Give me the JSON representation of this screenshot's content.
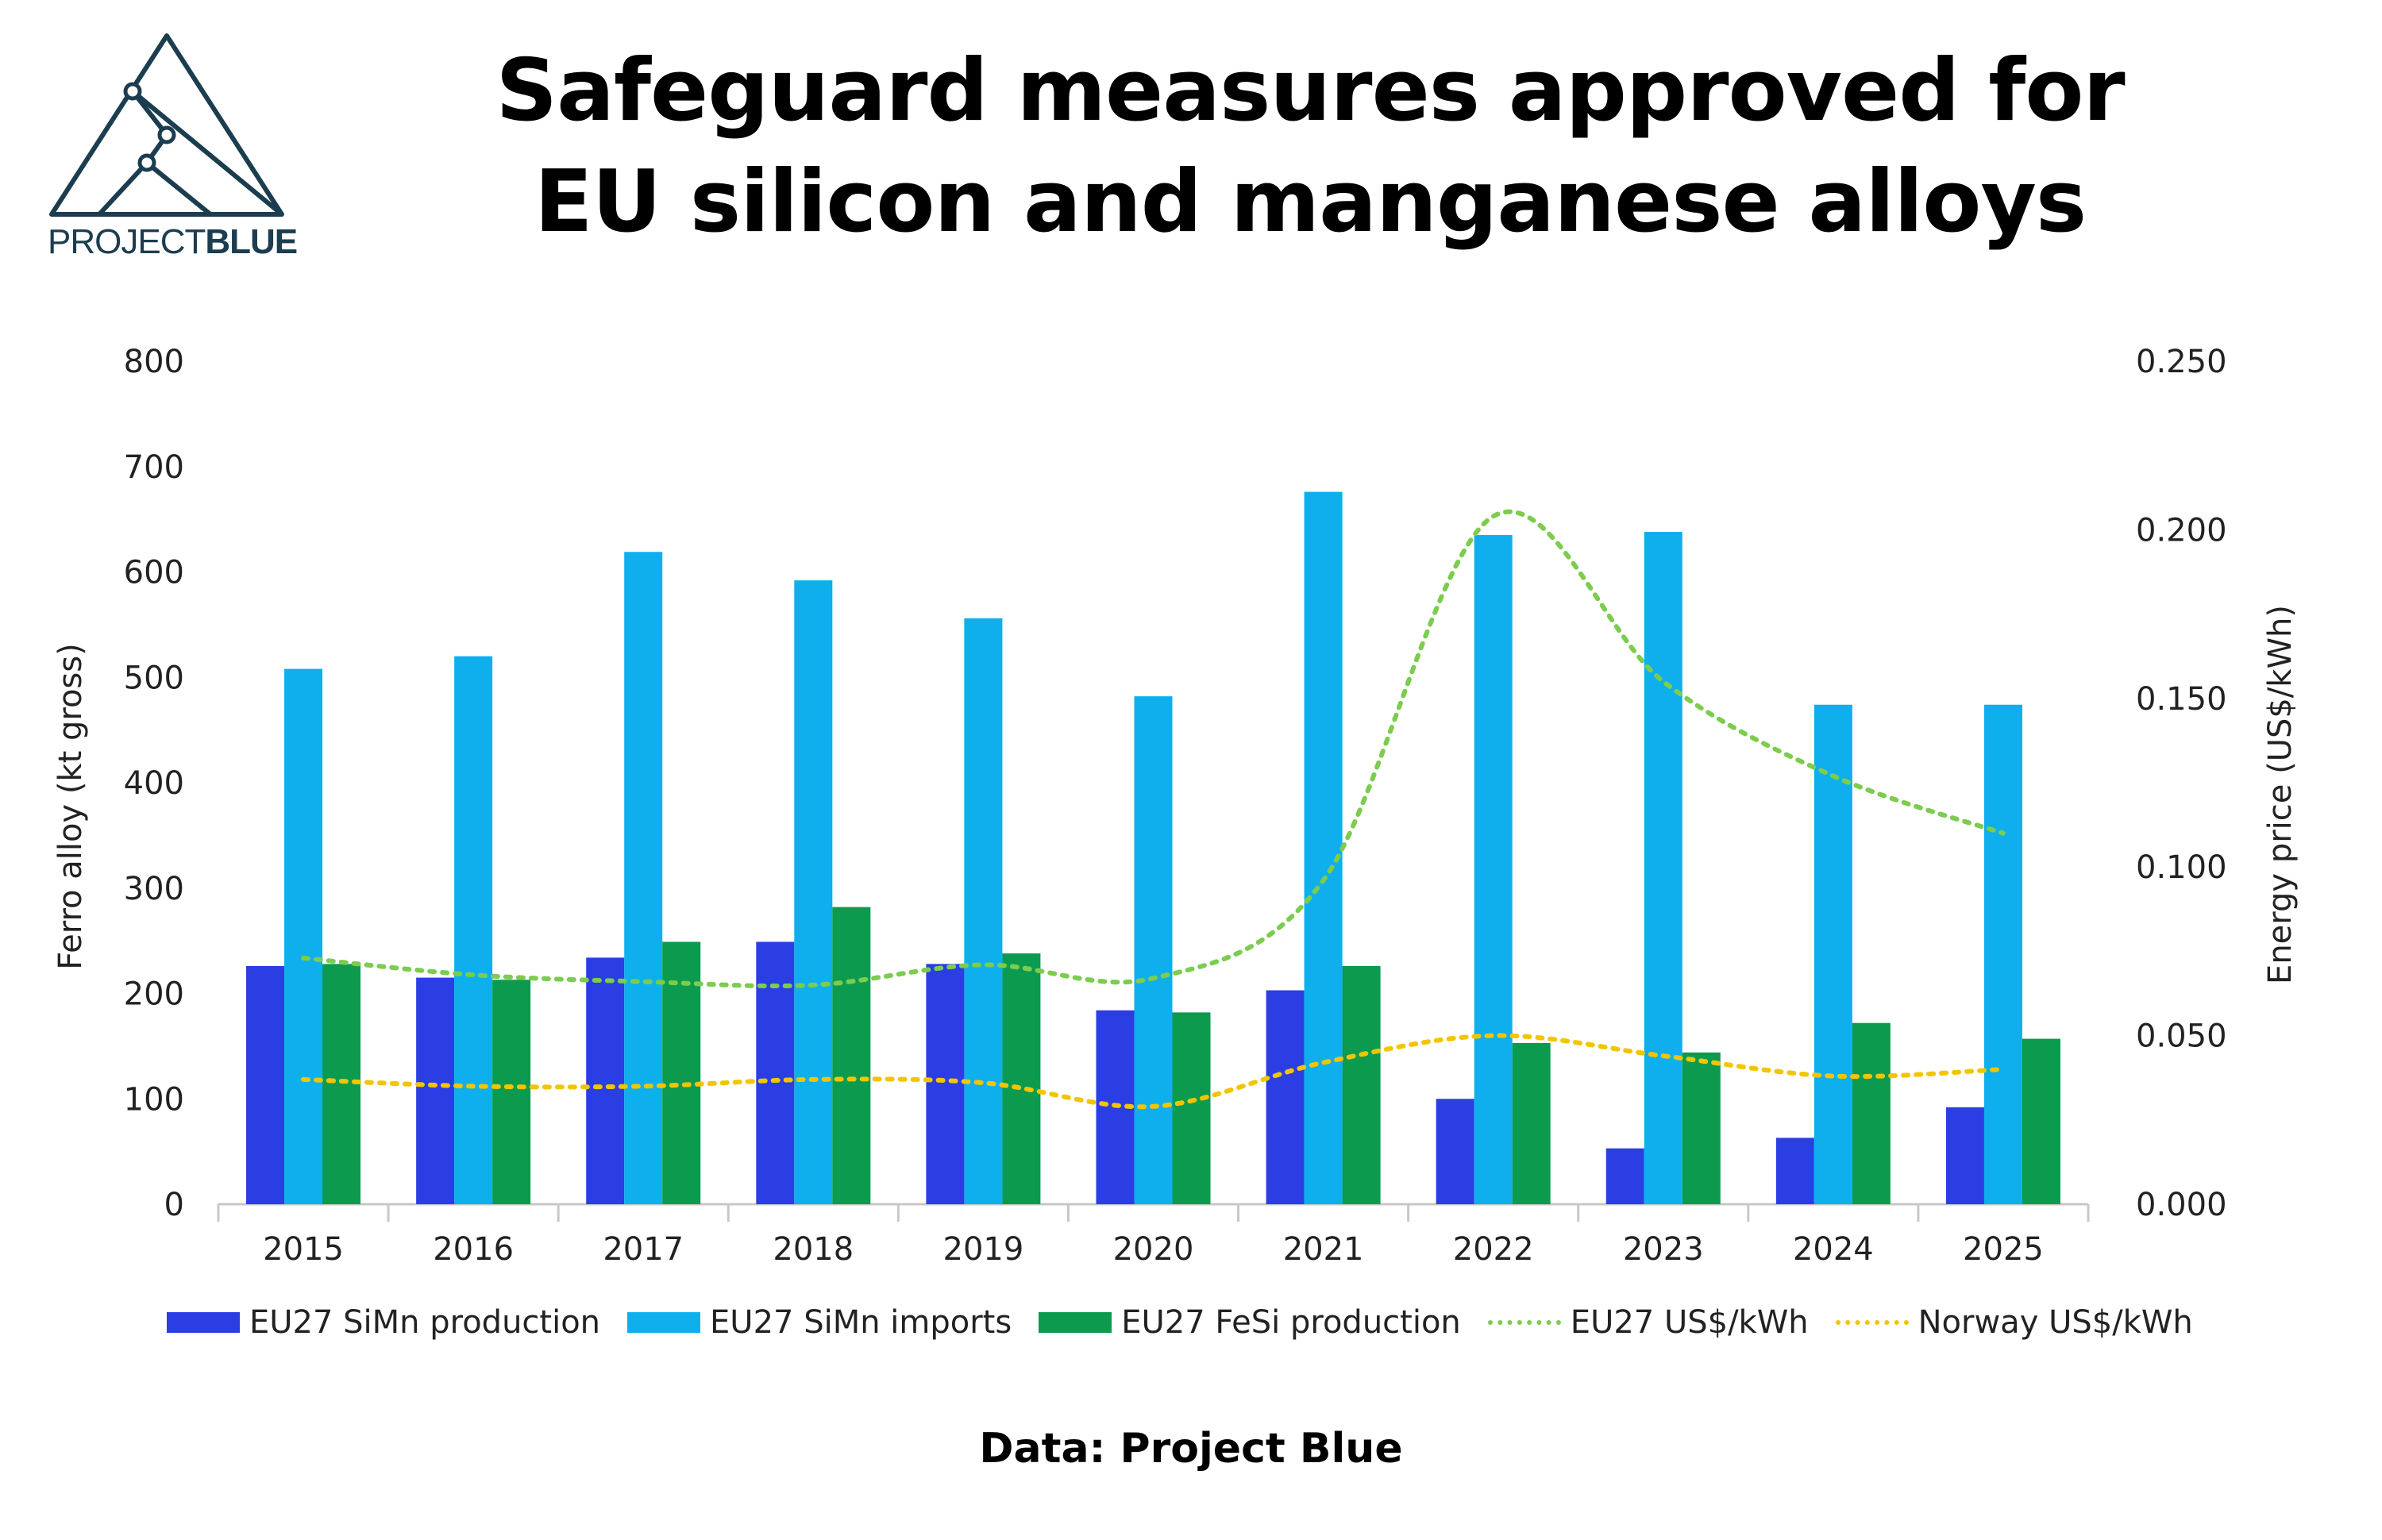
{
  "header": {
    "title_line1": "Safeguard measures approved for",
    "title_line2": "EU silicon and manganese alloys"
  },
  "logo": {
    "text_light": "PROJECT",
    "text_bold": "BLUE",
    "color": "#1c3d50"
  },
  "footer": {
    "source": "Data: Project Blue"
  },
  "chart_data": {
    "type": "bar",
    "title": "Safeguard measures approved for EU silicon and manganese alloys",
    "categories": [
      "2015",
      "2016",
      "2017",
      "2018",
      "2019",
      "2020",
      "2021",
      "2022",
      "2023",
      "2024",
      "2025"
    ],
    "ylabel": "Ferro alloy (kt gross)",
    "ylim": [
      0,
      800
    ],
    "yticks": [
      "0",
      "100",
      "200",
      "300",
      "400",
      "500",
      "600",
      "700",
      "800"
    ],
    "y2label": "Energy price (US$/kWh)",
    "y2lim": [
      0,
      0.25
    ],
    "y2ticks": [
      "0.000",
      "0.050",
      "0.100",
      "0.150",
      "0.200",
      "0.250"
    ],
    "grid": false,
    "legend_position": "bottom",
    "series": [
      {
        "name": "EU27 SiMn production",
        "kind": "bar",
        "axis": "left",
        "color": "#2a3ee3",
        "values": [
          226,
          215,
          234,
          249,
          228,
          184,
          203,
          100,
          53,
          63,
          92
        ]
      },
      {
        "name": "EU27 SiMn imports",
        "kind": "bar",
        "axis": "left",
        "color": "#0eafec",
        "values": [
          508,
          520,
          619,
          592,
          556,
          482,
          676,
          635,
          638,
          474,
          474
        ]
      },
      {
        "name": "EU27 FeSi production",
        "kind": "bar",
        "axis": "left",
        "color": "#0c9a4e",
        "values": [
          228,
          213,
          249,
          282,
          238,
          182,
          226,
          153,
          144,
          172,
          157
        ]
      },
      {
        "name": "EU27 US$/kWh",
        "kind": "line",
        "axis": "right",
        "color": "#7ccc4e",
        "dash": "dotted",
        "values": [
          0.073,
          0.068,
          0.066,
          0.065,
          0.071,
          0.067,
          0.096,
          0.204,
          0.155,
          0.127,
          0.11
        ]
      },
      {
        "name": "Norway US$/kWh",
        "kind": "line",
        "axis": "right",
        "color": "#f2c500",
        "dash": "dotted",
        "values": [
          0.037,
          0.035,
          0.035,
          0.037,
          0.036,
          0.029,
          0.042,
          0.05,
          0.044,
          0.038,
          0.04
        ]
      }
    ]
  }
}
